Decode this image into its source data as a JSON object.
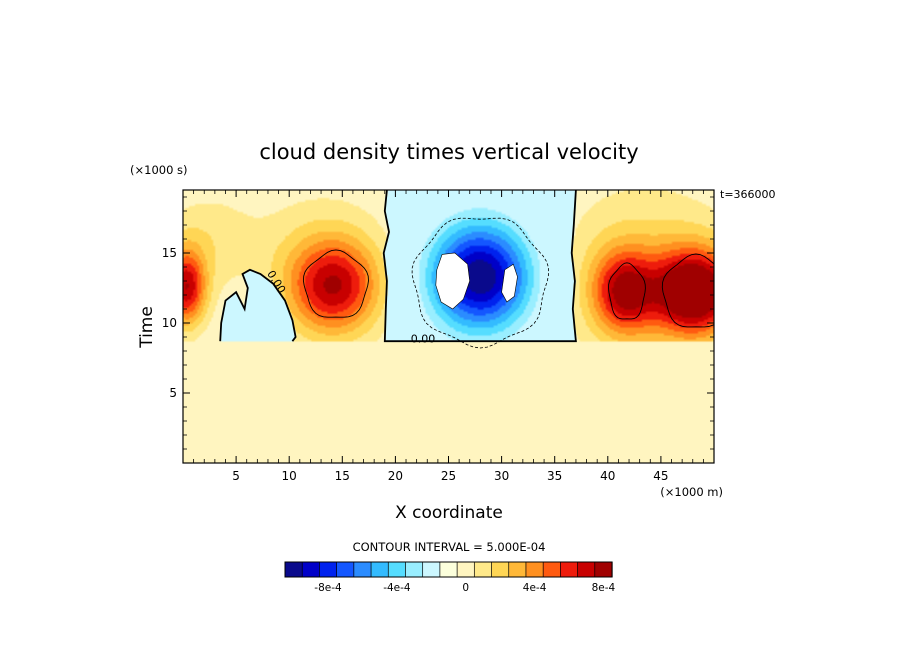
{
  "chart_data": {
    "type": "heatmap",
    "title": "cloud density times vertical velocity",
    "xlabel": "X coordinate",
    "ylabel": "Time",
    "x_units": "(×1000 m)",
    "y_units": "(×1000 s)",
    "time_stamp": "t=366000",
    "xlim": [
      0,
      50
    ],
    "ylim": [
      0,
      19.5
    ],
    "x_ticks": [
      5,
      10,
      15,
      20,
      25,
      30,
      35,
      40,
      45
    ],
    "x_tick_labels": [
      "5",
      "10",
      "15",
      "20",
      "25",
      "30",
      "35",
      "40",
      "45"
    ],
    "y_ticks": [
      5,
      10,
      15
    ],
    "y_tick_labels": [
      "5",
      "10",
      "15"
    ],
    "background_value": 0.0001,
    "contour_interval_label": "CONTOUR INTERVAL = 5.000E-04",
    "contour_labels": [
      {
        "text": "0.00",
        "x": 8.5,
        "y": 12.8,
        "rotate": 58
      },
      {
        "text": "0.00",
        "x": 22.6,
        "y": 8.6,
        "rotate": 0
      }
    ],
    "colorbar": {
      "colors": [
        "#0a0a8c",
        "#0000c8",
        "#0022ee",
        "#1457ff",
        "#2b8cff",
        "#33bbff",
        "#55ddff",
        "#99eeff",
        "#ccf7ff",
        "#fcffdc",
        "#fff5c0",
        "#ffe98a",
        "#ffd655",
        "#ffb838",
        "#ff9020",
        "#ff5a10",
        "#ee1c0c",
        "#c80000",
        "#a00000"
      ],
      "labels": [
        "-8e-4",
        "-4e-4",
        "0",
        "4e-4",
        "8e-4"
      ],
      "label_positions": [
        2.5,
        6.5,
        10.5,
        14.5,
        18.5
      ]
    },
    "features": [
      {
        "name": "positive-cell-left-edge",
        "cx": 0.3,
        "cy": 12.5,
        "rx": 2.2,
        "ry": 3.2,
        "amp": 0.00075
      },
      {
        "name": "positive-cell-x14",
        "cx": 14.2,
        "cy": 12.6,
        "rx": 5.0,
        "ry": 4.0,
        "amp": 0.0007
      },
      {
        "name": "positive-cell-x41",
        "cx": 41.5,
        "cy": 12.2,
        "rx": 3.5,
        "ry": 3.5,
        "amp": 0.00065
      },
      {
        "name": "positive-cell-x48",
        "cx": 48.2,
        "cy": 12.2,
        "rx": 4.6,
        "ry": 3.6,
        "amp": 0.00095
      },
      {
        "name": "positive-halo-x43",
        "cx": 43.5,
        "cy": 13.5,
        "rx": 10.0,
        "ry": 7.5,
        "amp": 0.00025
      },
      {
        "name": "positive-halo-x12",
        "cx": 12.5,
        "cy": 14.5,
        "rx": 9.0,
        "ry": 6.5,
        "amp": 0.00015
      },
      {
        "name": "positive-halo-x2",
        "cx": 2.0,
        "cy": 16.0,
        "rx": 5.0,
        "ry": 4.0,
        "amp": 0.00015
      },
      {
        "name": "negative-core-x28",
        "cx": 28.0,
        "cy": 13.3,
        "rx": 5.8,
        "ry": 4.6,
        "amp": -0.001
      },
      {
        "name": "negative-cell-x7",
        "cx": 7.0,
        "cy": 11.0,
        "rx": 2.4,
        "ry": 2.6,
        "amp": -8e-05
      }
    ],
    "negative_region_outline": [
      [
        19.2,
        19.5
      ],
      [
        19.0,
        18.0
      ],
      [
        19.4,
        16.5
      ],
      [
        18.9,
        15.0
      ],
      [
        19.2,
        13.0
      ],
      [
        19.1,
        11.0
      ],
      [
        19.0,
        8.7
      ],
      [
        37.0,
        8.7
      ],
      [
        36.7,
        11.0
      ],
      [
        36.9,
        13.0
      ],
      [
        36.6,
        15.0
      ],
      [
        36.8,
        17.0
      ],
      [
        37.0,
        19.5
      ]
    ],
    "small_negative_outline": [
      [
        3.5,
        8.7
      ],
      [
        3.6,
        10.0
      ],
      [
        4.0,
        11.6
      ],
      [
        5.0,
        12.2
      ],
      [
        5.8,
        11.0
      ],
      [
        6.1,
        12.5
      ],
      [
        5.6,
        13.5
      ],
      [
        6.3,
        13.8
      ],
      [
        7.3,
        13.5
      ],
      [
        8.5,
        12.8
      ],
      [
        9.6,
        11.6
      ],
      [
        10.3,
        10.2
      ],
      [
        10.6,
        9.0
      ],
      [
        10.3,
        8.7
      ]
    ],
    "missing_regions": [
      [
        [
          23.9,
          13.8
        ],
        [
          24.4,
          14.9
        ],
        [
          25.6,
          15.0
        ],
        [
          26.8,
          14.2
        ],
        [
          27.0,
          13.0
        ],
        [
          26.4,
          11.7
        ],
        [
          25.4,
          11.0
        ],
        [
          24.3,
          11.5
        ],
        [
          23.8,
          12.7
        ]
      ],
      [
        [
          30.0,
          12.2
        ],
        [
          30.3,
          13.8
        ],
        [
          31.1,
          14.2
        ],
        [
          31.5,
          13.3
        ],
        [
          31.2,
          11.9
        ],
        [
          30.5,
          11.5
        ]
      ]
    ]
  }
}
